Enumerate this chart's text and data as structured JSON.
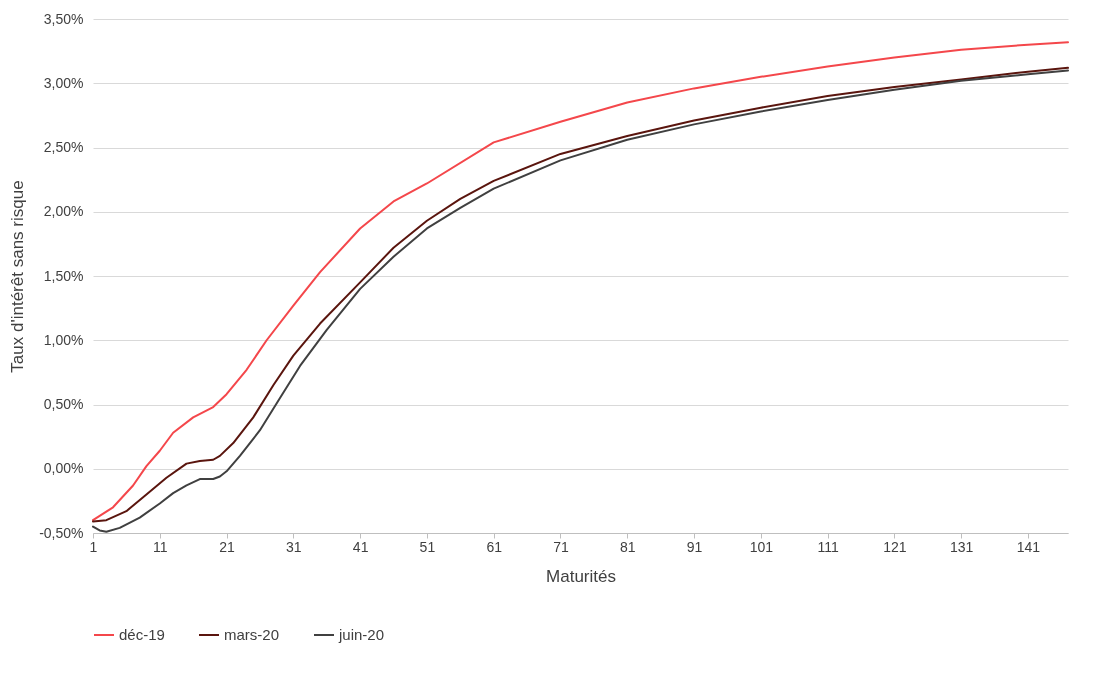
{
  "chart_data": {
    "type": "line",
    "xlabel": "Maturités",
    "ylabel": "Taux d'intérêt sans risque",
    "xlim": [
      1,
      147
    ],
    "xticks": [
      1,
      11,
      21,
      31,
      41,
      51,
      61,
      71,
      81,
      91,
      101,
      111,
      121,
      131,
      141
    ],
    "ylim": [
      -0.5,
      3.5
    ],
    "yticks": [
      {
        "value": -0.5,
        "label": "-0,50%"
      },
      {
        "value": 0,
        "label": "0,00%"
      },
      {
        "value": 0.5,
        "label": "0,50%"
      },
      {
        "value": 1,
        "label": "1,00%"
      },
      {
        "value": 1.5,
        "label": "1,50%"
      },
      {
        "value": 2,
        "label": "2,00%"
      },
      {
        "value": 2.5,
        "label": "2,50%"
      },
      {
        "value": 3,
        "label": "3,00%"
      },
      {
        "value": 3.5,
        "label": "3,50%"
      }
    ],
    "grid": "y",
    "legend": "bottom",
    "marker": "none",
    "line_style": "solid",
    "series": [
      {
        "name": "déc-19",
        "color": "#f4474b",
        "x": [
          1,
          4,
          7,
          9,
          11,
          13,
          16,
          19,
          21,
          24,
          27,
          31,
          35,
          41,
          46,
          51,
          61,
          71,
          81,
          91,
          101,
          111,
          121,
          131,
          141,
          147
        ],
        "values": [
          -0.4,
          -0.3,
          -0.13,
          0.02,
          0.14,
          0.28,
          0.4,
          0.48,
          0.58,
          0.77,
          1.0,
          1.27,
          1.53,
          1.87,
          2.08,
          2.22,
          2.54,
          2.7,
          2.85,
          2.96,
          3.05,
          3.13,
          3.2,
          3.26,
          3.3,
          3.32
        ]
      },
      {
        "name": "mars-20",
        "color": "#5a150e",
        "x": [
          1,
          3,
          6,
          9,
          12,
          15,
          17,
          19,
          20,
          22,
          25,
          28,
          31,
          35,
          41,
          46,
          51,
          56,
          61,
          71,
          81,
          91,
          101,
          111,
          121,
          131,
          141,
          147
        ],
        "values": [
          -0.41,
          -0.4,
          -0.33,
          -0.2,
          -0.07,
          0.04,
          0.06,
          0.07,
          0.1,
          0.2,
          0.4,
          0.65,
          0.88,
          1.13,
          1.45,
          1.72,
          1.93,
          2.1,
          2.24,
          2.45,
          2.59,
          2.71,
          2.81,
          2.9,
          2.97,
          3.03,
          3.09,
          3.12
        ]
      },
      {
        "name": "juin-20",
        "color": "#404040",
        "x": [
          1,
          2,
          3,
          5,
          8,
          11,
          13,
          15,
          17,
          19,
          20,
          21,
          23,
          26,
          29,
          32,
          36,
          41,
          46,
          51,
          56,
          61,
          71,
          81,
          91,
          101,
          111,
          121,
          131,
          141,
          147
        ],
        "values": [
          -0.45,
          -0.48,
          -0.49,
          -0.46,
          -0.38,
          -0.27,
          -0.19,
          -0.13,
          -0.08,
          -0.08,
          -0.06,
          -0.02,
          0.1,
          0.3,
          0.55,
          0.8,
          1.08,
          1.4,
          1.65,
          1.87,
          2.03,
          2.18,
          2.4,
          2.56,
          2.68,
          2.78,
          2.87,
          2.95,
          3.02,
          3.07,
          3.1
        ]
      }
    ]
  }
}
